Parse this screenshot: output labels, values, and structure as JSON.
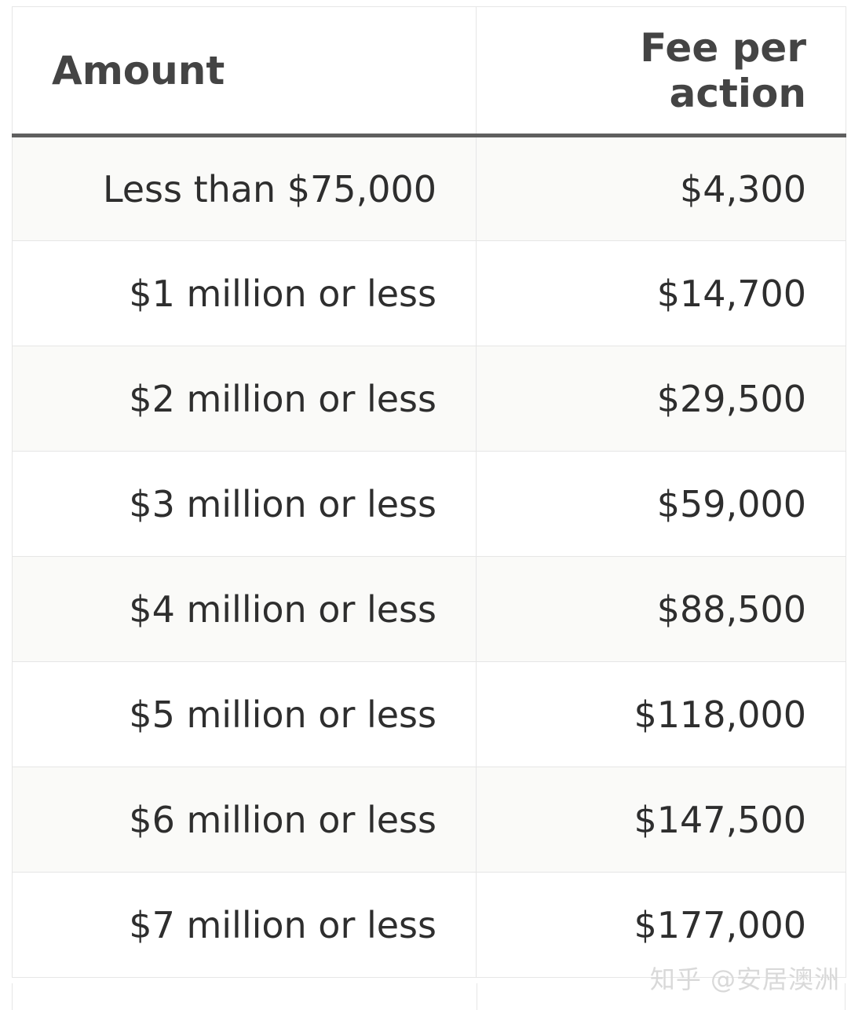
{
  "table": {
    "headers": [
      "Amount",
      "Fee per action"
    ],
    "rows": [
      [
        "Less than $75,000",
        "$4,300"
      ],
      [
        "$1 million or less",
        "$14,700"
      ],
      [
        "$2 million or less",
        "$29,500"
      ],
      [
        "$3 million or less",
        "$59,000"
      ],
      [
        "$4 million or less",
        "$88,500"
      ],
      [
        "$5 million or less",
        "$118,000"
      ],
      [
        "$6 million or less",
        "$147,500"
      ],
      [
        "$7 million or less",
        "$177,000"
      ]
    ]
  },
  "watermark": "知乎 @安居澳洲"
}
